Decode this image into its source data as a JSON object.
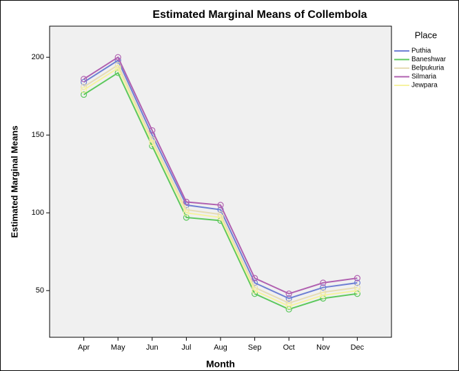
{
  "chart_data": {
    "type": "line",
    "title": "Estimated Marginal Means of Collembola",
    "x_label": "Month",
    "y_label": "Estimated Marginal Means",
    "legend_title": "Place",
    "categories": [
      "Apr",
      "May",
      "Jun",
      "Jul",
      "Aug",
      "Sep",
      "Oct",
      "Nov",
      "Dec"
    ],
    "series": [
      {
        "name": "Puthia",
        "color": "#6e7fd4",
        "values": [
          184,
          198,
          150,
          105,
          102,
          55,
          45,
          52,
          55
        ]
      },
      {
        "name": "Baneshwar",
        "color": "#5cc85c",
        "values": [
          176,
          190,
          143,
          97,
          95,
          48,
          38,
          45,
          48
        ]
      },
      {
        "name": "Belpukuria",
        "color": "#e6dcb4",
        "values": [
          181,
          195,
          147,
          102,
          99,
          52,
          42,
          49,
          52
        ]
      },
      {
        "name": "Silmaria",
        "color": "#b060b0",
        "values": [
          186,
          200,
          153,
          107,
          105,
          58,
          48,
          55,
          58
        ]
      },
      {
        "name": "Jewpara",
        "color": "#f6f2a0",
        "values": [
          179,
          193,
          145,
          100,
          97,
          50,
          40,
          47,
          50
        ]
      }
    ],
    "ylim": [
      20,
      220
    ],
    "yticks": [
      50,
      100,
      150,
      200
    ]
  }
}
